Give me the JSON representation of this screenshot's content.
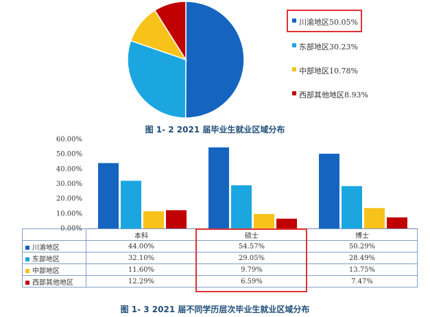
{
  "chart_data": [
    {
      "type": "pie",
      "title": "",
      "labels": [
        "川渝地区",
        "东部地区",
        "中部地区",
        "西部其他地区"
      ],
      "values": [
        50.05,
        30.23,
        10.78,
        8.93
      ],
      "legend_entries": [
        "川渝地区50.05%",
        "东部地区30.23%",
        "中部地区10.78%",
        "西部其他地区8.93%"
      ],
      "legend_position": "right",
      "highlighted_entry": "川渝地区50.05%",
      "colors": [
        "#1565c0",
        "#1ba6e0",
        "#f7c31b",
        "#c00000"
      ]
    },
    {
      "type": "bar",
      "title": "",
      "categories": [
        "本科",
        "硕士",
        "博士"
      ],
      "series": [
        {
          "name": "川渝地区",
          "values": [
            44.0,
            54.57,
            50.29
          ],
          "color": "#1565c0"
        },
        {
          "name": "东部地区",
          "values": [
            32.1,
            29.05,
            28.49
          ],
          "color": "#1ba6e0"
        },
        {
          "name": "中部地区",
          "values": [
            11.6,
            9.79,
            13.75
          ],
          "color": "#f7c31b"
        },
        {
          "name": "西部其他地区",
          "values": [
            12.29,
            6.59,
            7.47
          ],
          "color": "#c00000"
        }
      ],
      "ylim": [
        0,
        60
      ],
      "yticks": [
        "0.00%",
        "10.00%",
        "20.00%",
        "30.00%",
        "40.00%",
        "50.00%",
        "60.00%"
      ],
      "table_values": [
        [
          "44.00%",
          "54.57%",
          "50.29%"
        ],
        [
          "32.10%",
          "29.05%",
          "28.49%"
        ],
        [
          "11.60%",
          "9.79%",
          "13.75%"
        ],
        [
          "12.29%",
          "6.59%",
          "7.47%"
        ]
      ],
      "highlighted_category": "硕士",
      "grid": false
    }
  ],
  "captions": {
    "fig1": "图 1- 2 2021 届毕业生就业区域分布",
    "fig2": "图 1- 3 2021 届不同学历层次毕业生就业区域分布"
  }
}
